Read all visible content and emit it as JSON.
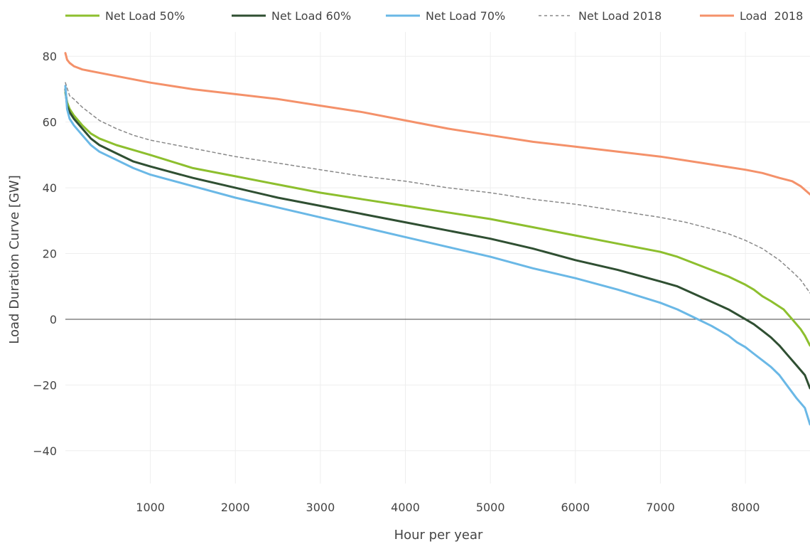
{
  "chart_data": {
    "type": "line",
    "xlabel": "Hour per year",
    "ylabel": "Load Duration Curve [GW]",
    "xlim": [
      0,
      8760
    ],
    "ylim": [
      -50,
      82
    ],
    "x_ticks": [
      1000,
      2000,
      3000,
      4000,
      5000,
      6000,
      7000,
      8000
    ],
    "y_ticks": [
      -40,
      -20,
      0,
      20,
      40,
      60,
      80
    ],
    "y_tick_labels": [
      "−40",
      "−20",
      "0",
      "20",
      "40",
      "60",
      "80"
    ],
    "grid": true,
    "legend_position": "top",
    "series": [
      {
        "name": "Net Load 50%",
        "color": "#8dbf2e",
        "dash": "solid",
        "x": [
          0,
          20,
          50,
          100,
          200,
          300,
          400,
          600,
          800,
          1000,
          1500,
          2000,
          2500,
          3000,
          3500,
          4000,
          4500,
          5000,
          5200,
          5500,
          6000,
          6500,
          7000,
          7200,
          7500,
          7800,
          8000,
          8100,
          8200,
          8300,
          8450,
          8550,
          8650,
          8700,
          8760
        ],
        "y": [
          69,
          66,
          64,
          62,
          59,
          56.5,
          55,
          53,
          51.5,
          50,
          46,
          43.5,
          41,
          38.5,
          36.5,
          34.5,
          32.5,
          30.5,
          29.5,
          28,
          25.5,
          23,
          20.5,
          19,
          16,
          13,
          10.5,
          9,
          7,
          5.5,
          3,
          0,
          -3,
          -5,
          -8
        ]
      },
      {
        "name": "Net Load 60%",
        "color": "#2f4f32",
        "dash": "solid",
        "x": [
          0,
          20,
          50,
          100,
          200,
          300,
          400,
          600,
          800,
          1000,
          1500,
          2000,
          2500,
          3000,
          3500,
          4000,
          4500,
          5000,
          5500,
          6000,
          6500,
          7000,
          7200,
          7500,
          7800,
          8000,
          8100,
          8200,
          8300,
          8400,
          8500,
          8600,
          8700,
          8760
        ],
        "y": [
          70,
          65,
          63,
          61,
          58,
          55,
          53,
          50.5,
          48,
          46.5,
          43,
          40,
          37,
          34.5,
          32,
          29.5,
          27,
          24.5,
          21.5,
          18,
          15,
          11.5,
          10,
          6.5,
          3,
          0,
          -1.5,
          -3.5,
          -5.5,
          -8,
          -11,
          -14,
          -17,
          -21
        ]
      },
      {
        "name": "Net Load 70%",
        "color": "#6ab8e6",
        "dash": "solid",
        "x": [
          0,
          20,
          50,
          100,
          200,
          300,
          400,
          600,
          800,
          1000,
          1500,
          2000,
          2500,
          3000,
          3500,
          4000,
          4500,
          5000,
          5500,
          6000,
          6500,
          7000,
          7200,
          7400,
          7600,
          7800,
          7900,
          8000,
          8100,
          8200,
          8300,
          8400,
          8500,
          8600,
          8700,
          8760
        ],
        "y": [
          71,
          64,
          61,
          59,
          56,
          53,
          51,
          48.5,
          46,
          44,
          40.5,
          37,
          34,
          31,
          28,
          25,
          22,
          19,
          15.5,
          12.5,
          9,
          5,
          3,
          0.5,
          -2,
          -5,
          -7,
          -8.5,
          -10.5,
          -12.5,
          -14.5,
          -17,
          -20.5,
          -24,
          -27,
          -32
        ]
      },
      {
        "name": "Net Load 2018",
        "color": "#888888",
        "dash": "dashed",
        "x": [
          0,
          50,
          100,
          200,
          300,
          400,
          600,
          800,
          1000,
          1500,
          2000,
          2500,
          3000,
          3500,
          4000,
          4500,
          5000,
          5500,
          6000,
          6500,
          7000,
          7300,
          7600,
          7800,
          8000,
          8200,
          8400,
          8550,
          8650,
          8760
        ],
        "y": [
          72,
          68,
          67,
          64.5,
          62.5,
          60.5,
          58,
          56,
          54.5,
          52,
          49.5,
          47.5,
          45.5,
          43.5,
          42,
          40,
          38.5,
          36.5,
          35,
          33,
          31,
          29.5,
          27.5,
          26,
          24,
          21.5,
          18,
          14.5,
          12,
          8
        ]
      },
      {
        "name": "Load  2018",
        "color": "#f4916a",
        "dash": "solid",
        "x": [
          0,
          20,
          50,
          100,
          150,
          200,
          500,
          1000,
          1500,
          2000,
          2500,
          3000,
          3500,
          4000,
          4500,
          5000,
          5500,
          6000,
          6500,
          7000,
          7500,
          8000,
          8200,
          8400,
          8550,
          8650,
          8760
        ],
        "y": [
          81,
          79,
          78,
          77,
          76.5,
          76,
          74.5,
          72,
          70,
          68.5,
          67,
          65,
          63,
          60.5,
          58,
          56,
          54,
          52.5,
          51,
          49.5,
          47.5,
          45.5,
          44.5,
          43,
          42,
          40.5,
          38
        ]
      }
    ]
  }
}
